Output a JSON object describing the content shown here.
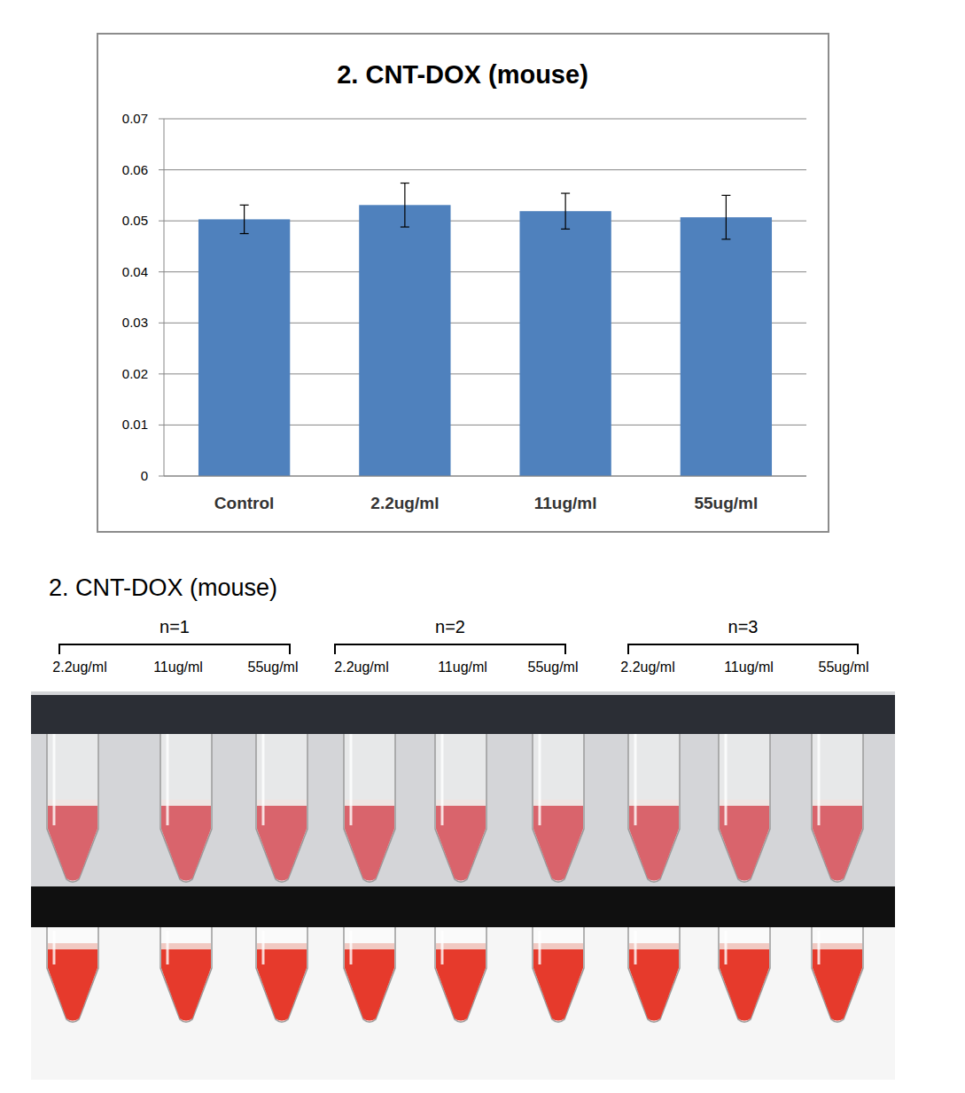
{
  "chart_data": {
    "type": "bar",
    "title": "2. CNT-DOX (mouse)",
    "categories": [
      "Control",
      "2.2ug/ml",
      "11ug/ml",
      "55ug/ml"
    ],
    "values": [
      0.0503,
      0.0531,
      0.0519,
      0.0507
    ],
    "errors": [
      0.0028,
      0.0043,
      0.0035,
      0.0043
    ],
    "color": "#4f81bd",
    "ylim": [
      0,
      0.07
    ],
    "yticks": [
      0,
      0.01,
      0.02,
      0.03,
      0.04,
      0.05,
      0.06,
      0.07
    ],
    "grid": true
  },
  "photo_panel": {
    "title": "2. CNT-DOX (mouse)",
    "groups": [
      {
        "label": "n=1",
        "concentrations": [
          "2.2ug/ml",
          "11ug/ml",
          "55ug/ml"
        ]
      },
      {
        "label": "n=2",
        "concentrations": [
          "2.2ug/ml",
          "11ug/ml",
          "55ug/ml"
        ]
      },
      {
        "label": "n=3",
        "concentrations": [
          "2.2ug/ml",
          "11ug/ml",
          "55ug/ml"
        ]
      }
    ]
  }
}
